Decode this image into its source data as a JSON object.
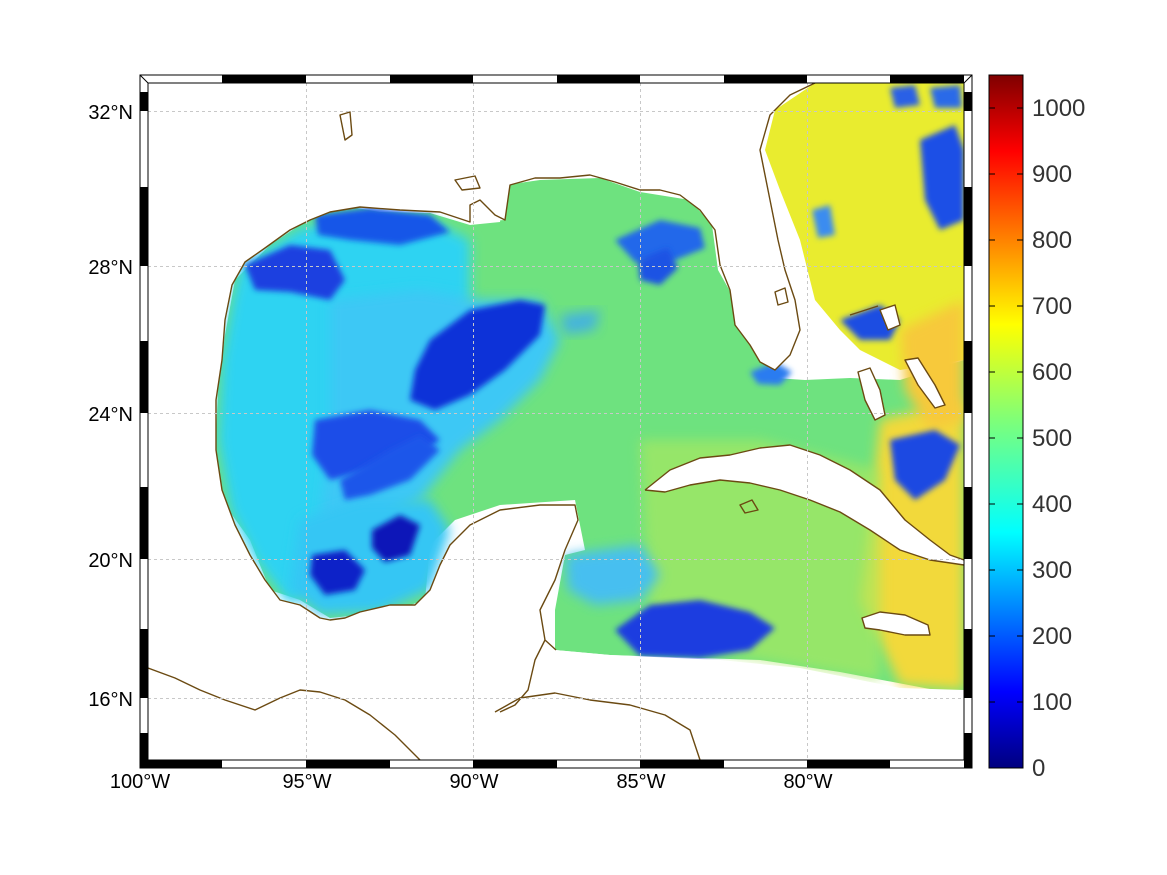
{
  "map": {
    "region": "Gulf of Mexico and western Caribbean",
    "projection": "mercator-like",
    "lon_range": [
      -100,
      -75
    ],
    "lat_range": [
      14.3,
      33.0
    ],
    "grid": true,
    "coastline_color": "#6b4a12",
    "lon_ticks": [
      {
        "value": -100,
        "label": "100°W"
      },
      {
        "value": -95,
        "label": "95°W"
      },
      {
        "value": -90,
        "label": "90°W"
      },
      {
        "value": -85,
        "label": "85°W"
      },
      {
        "value": -80,
        "label": "80°W"
      }
    ],
    "lat_ticks": [
      {
        "value": 32,
        "label": "32°N"
      },
      {
        "value": 28,
        "label": "28°N"
      },
      {
        "value": 24,
        "label": "24°N"
      },
      {
        "value": 20,
        "label": "20°N"
      },
      {
        "value": 16,
        "label": "16°N"
      }
    ],
    "field_description_colors": {
      "deep_low": "#0a1fd0",
      "low": "#2a7cf0",
      "mid_low": "#28d4f0",
      "mid": "#7de27a",
      "mid_high": "#d7ea45",
      "high": "#f6e629"
    }
  },
  "colorbar": {
    "min": 0,
    "max": 1050,
    "colormap": "jet",
    "ticks": [
      {
        "value": 0,
        "label": "0"
      },
      {
        "value": 100,
        "label": "100"
      },
      {
        "value": 200,
        "label": "200"
      },
      {
        "value": 300,
        "label": "300"
      },
      {
        "value": 400,
        "label": "400"
      },
      {
        "value": 500,
        "label": "500"
      },
      {
        "value": 600,
        "label": "600"
      },
      {
        "value": 700,
        "label": "700"
      },
      {
        "value": 800,
        "label": "800"
      },
      {
        "value": 900,
        "label": "900"
      },
      {
        "value": 1000,
        "label": "1000"
      }
    ]
  }
}
